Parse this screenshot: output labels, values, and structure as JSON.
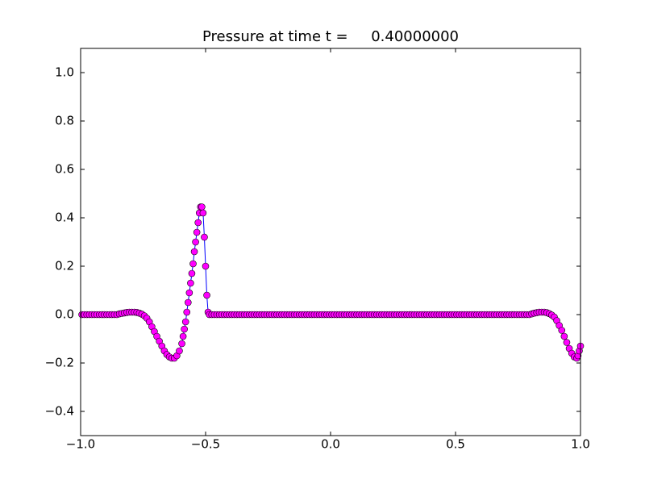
{
  "chart_data": {
    "type": "line",
    "title": "Pressure at time t =     0.40000000",
    "x": [
      -0.995,
      -0.985,
      -0.975,
      -0.965,
      -0.955,
      -0.945,
      -0.935,
      -0.925,
      -0.915,
      -0.905,
      -0.895,
      -0.885,
      -0.875,
      -0.865,
      -0.855,
      -0.845,
      -0.835,
      -0.825,
      -0.815,
      -0.805,
      -0.795,
      -0.785,
      -0.775,
      -0.765,
      -0.755,
      -0.745,
      -0.735,
      -0.725,
      -0.715,
      -0.705,
      -0.695,
      -0.685,
      -0.675,
      -0.665,
      -0.655,
      -0.645,
      -0.635,
      -0.625,
      -0.615,
      -0.605,
      -0.595,
      -0.59,
      -0.585,
      -0.58,
      -0.575,
      -0.57,
      -0.565,
      -0.56,
      -0.555,
      -0.55,
      -0.545,
      -0.54,
      -0.535,
      -0.53,
      -0.525,
      -0.52,
      -0.515,
      -0.51,
      -0.505,
      -0.5,
      -0.495,
      -0.49,
      -0.485,
      -0.475,
      -0.465,
      -0.455,
      -0.445,
      -0.435,
      -0.425,
      -0.415,
      -0.405,
      -0.395,
      -0.385,
      -0.375,
      -0.365,
      -0.355,
      -0.345,
      -0.335,
      -0.325,
      -0.315,
      -0.305,
      -0.295,
      -0.285,
      -0.275,
      -0.265,
      -0.255,
      -0.245,
      -0.235,
      -0.225,
      -0.215,
      -0.205,
      -0.195,
      -0.185,
      -0.175,
      -0.165,
      -0.155,
      -0.145,
      -0.135,
      -0.125,
      -0.115,
      -0.105,
      -0.095,
      -0.085,
      -0.075,
      -0.065,
      -0.055,
      -0.045,
      -0.035,
      -0.025,
      -0.015,
      -0.005,
      0.005,
      0.015,
      0.025,
      0.035,
      0.045,
      0.055,
      0.065,
      0.075,
      0.085,
      0.095,
      0.105,
      0.115,
      0.125,
      0.135,
      0.145,
      0.155,
      0.165,
      0.175,
      0.185,
      0.195,
      0.205,
      0.215,
      0.225,
      0.235,
      0.245,
      0.255,
      0.265,
      0.275,
      0.285,
      0.295,
      0.305,
      0.315,
      0.325,
      0.335,
      0.345,
      0.355,
      0.365,
      0.375,
      0.385,
      0.395,
      0.405,
      0.415,
      0.425,
      0.435,
      0.445,
      0.455,
      0.465,
      0.475,
      0.485,
      0.495,
      0.505,
      0.515,
      0.525,
      0.535,
      0.545,
      0.555,
      0.565,
      0.575,
      0.585,
      0.595,
      0.605,
      0.615,
      0.625,
      0.635,
      0.645,
      0.655,
      0.665,
      0.675,
      0.685,
      0.695,
      0.705,
      0.715,
      0.725,
      0.735,
      0.745,
      0.755,
      0.765,
      0.775,
      0.785,
      0.795,
      0.805,
      0.815,
      0.825,
      0.835,
      0.845,
      0.855,
      0.865,
      0.875,
      0.885,
      0.895,
      0.905,
      0.915,
      0.925,
      0.935,
      0.945,
      0.955,
      0.965,
      0.975,
      0.985,
      0.99,
      0.995,
      1.0
    ],
    "series": [
      {
        "line_color": "#0000ff",
        "color": "#ff00ff",
        "marker_edge": "#000000",
        "values": [
          0,
          0,
          0,
          0,
          0,
          0,
          0,
          0,
          0,
          0,
          0,
          0,
          0,
          0,
          0,
          0.003,
          0.005,
          0.007,
          0.009,
          0.01,
          0.01,
          0.01,
          0.009,
          0.006,
          0.002,
          -0.005,
          -0.015,
          -0.03,
          -0.05,
          -0.07,
          -0.09,
          -0.11,
          -0.13,
          -0.15,
          -0.165,
          -0.175,
          -0.18,
          -0.18,
          -0.17,
          -0.15,
          -0.12,
          -0.09,
          -0.06,
          -0.03,
          0.01,
          0.05,
          0.09,
          0.13,
          0.17,
          0.21,
          0.26,
          0.3,
          0.34,
          0.38,
          0.42,
          0.445,
          0.445,
          0.42,
          0.32,
          0.2,
          0.08,
          0.01,
          0,
          0,
          0,
          0,
          0,
          0,
          0,
          0,
          0,
          0,
          0,
          0,
          0,
          0,
          0,
          0,
          0,
          0,
          0,
          0,
          0,
          0,
          0,
          0,
          0,
          0,
          0,
          0,
          0,
          0,
          0,
          0,
          0,
          0,
          0,
          0,
          0,
          0,
          0,
          0,
          0,
          0,
          0,
          0,
          0,
          0,
          0,
          0,
          0,
          0,
          0,
          0,
          0,
          0,
          0,
          0,
          0,
          0,
          0,
          0,
          0,
          0,
          0,
          0,
          0,
          0,
          0,
          0,
          0,
          0,
          0,
          0,
          0,
          0,
          0,
          0,
          0,
          0,
          0,
          0,
          0,
          0,
          0,
          0,
          0,
          0,
          0,
          0,
          0,
          0,
          0,
          0,
          0,
          0,
          0,
          0,
          0,
          0,
          0,
          0,
          0,
          0,
          0,
          0,
          0,
          0,
          0,
          0,
          0,
          0,
          0,
          0,
          0,
          0,
          0,
          0,
          0,
          0,
          0,
          0,
          0,
          0,
          0,
          0,
          0,
          0,
          0,
          0,
          0,
          0.003,
          0.006,
          0.008,
          0.01,
          0.01,
          0.01,
          0.008,
          0.004,
          -0.002,
          -0.01,
          -0.025,
          -0.045,
          -0.065,
          -0.09,
          -0.115,
          -0.14,
          -0.16,
          -0.175,
          -0.18,
          -0.17,
          -0.15,
          -0.13
        ]
      }
    ],
    "xlim": [
      -1,
      1
    ],
    "ylim": [
      -0.5,
      1.1
    ],
    "xticks": [
      {
        "value": -1,
        "label": "−1.0"
      },
      {
        "value": -0.5,
        "label": "−0.5"
      },
      {
        "value": 0,
        "label": "0.0"
      },
      {
        "value": 0.5,
        "label": "0.5"
      },
      {
        "value": 1,
        "label": "1.0"
      }
    ],
    "yticks": [
      {
        "value": -0.4,
        "label": "−0.4"
      },
      {
        "value": -0.2,
        "label": "−0.2"
      },
      {
        "value": 0,
        "label": "0.0"
      },
      {
        "value": 0.2,
        "label": "0.2"
      },
      {
        "value": 0.4,
        "label": "0.4"
      },
      {
        "value": 0.6,
        "label": "0.6"
      },
      {
        "value": 0.8,
        "label": "0.8"
      },
      {
        "value": 1,
        "label": "1.0"
      }
    ],
    "grid": false
  }
}
